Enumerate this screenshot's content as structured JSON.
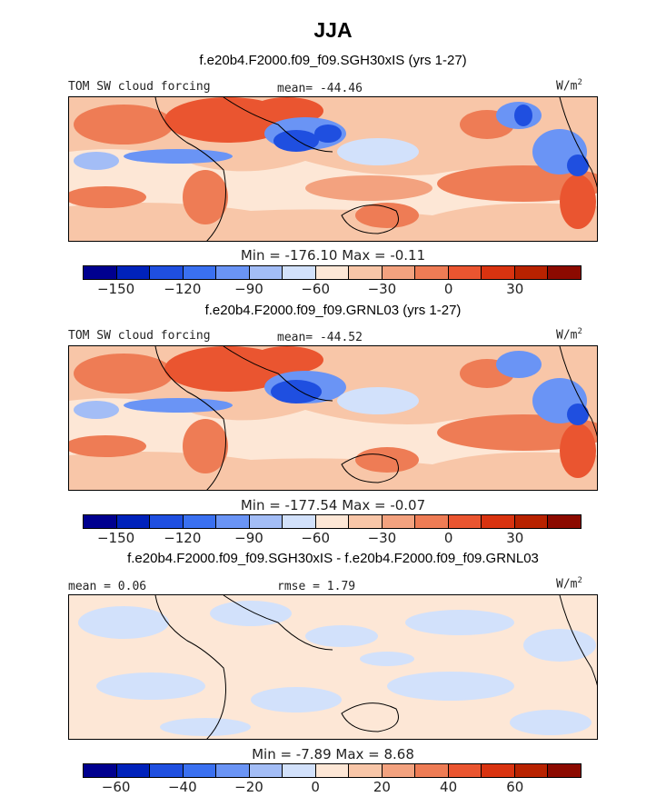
{
  "title": "JJA",
  "panels": [
    {
      "subtitle": "f.e20b4.F2000.f09_f09.SGH30xIS (yrs 1-27)",
      "variable": "TOM SW cloud forcing",
      "mean_label": "mean= -44.46",
      "units": "W/m",
      "units_exp": "2",
      "minmax": "Min = -176.10 Max = -0.11",
      "colorbar_ticks": [
        "-150",
        "-120",
        "-90",
        "-60",
        "-30",
        "0",
        "30"
      ]
    },
    {
      "subtitle": "f.e20b4.F2000.f09_f09.GRNL03 (yrs 1-27)",
      "variable": "TOM SW cloud forcing",
      "mean_label": "mean= -44.52",
      "units": "W/m",
      "units_exp": "2",
      "minmax": "Min = -177.54 Max = -0.07",
      "colorbar_ticks": [
        "-150",
        "-120",
        "-90",
        "-60",
        "-30",
        "0",
        "30"
      ]
    },
    {
      "subtitle": "f.e20b4.F2000.f09_f09.SGH30xIS - f.e20b4.F2000.f09_f09.GRNL03",
      "mean_label": "mean = 0.06",
      "rmse_label": "rmse = 1.79",
      "units": "W/m",
      "units_exp": "2",
      "minmax": "Min = -7.89 Max = 8.68",
      "colorbar_ticks": [
        "-60",
        "-40",
        "-20",
        "0",
        "20",
        "40",
        "60"
      ]
    }
  ],
  "colorbar_colors": [
    "#00008f",
    "#0022bb",
    "#1f4fe0",
    "#3a70f0",
    "#6a94f5",
    "#a3bdf6",
    "#d2e1fb",
    "#fde7d6",
    "#f8c6a8",
    "#f3a27f",
    "#ee7c55",
    "#ea5530",
    "#d93310",
    "#b82200",
    "#8c0a00"
  ],
  "palette": {
    "deep_blue": "#1f4fe0",
    "mid_blue": "#6a94f5",
    "light_blue": "#d2e1fb",
    "peach": "#fde7d6",
    "salmon": "#f8c6a8",
    "orange": "#ee7c55",
    "red": "#ea5530"
  }
}
